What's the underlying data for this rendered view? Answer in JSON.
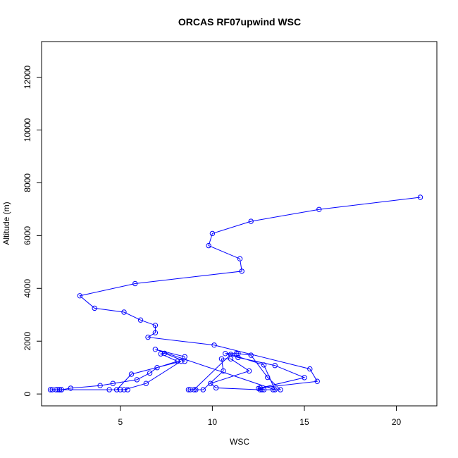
{
  "chart_data": {
    "type": "line",
    "title": "ORCAS RF07upwind WSC",
    "xlabel": "WSC",
    "ylabel": "Altitude (m)",
    "xlim": [
      0.72,
      22.2
    ],
    "ylim": [
      -450,
      13350
    ],
    "x_ticks": [
      5,
      10,
      15,
      20
    ],
    "y_ticks": [
      0,
      2000,
      4000,
      6000,
      8000,
      10000,
      12000
    ],
    "grid": false,
    "legend": "none",
    "marker": "open-circle",
    "series": [
      {
        "color": "#0000ff",
        "points": [
          [
            21.3,
            7450
          ],
          [
            15.8,
            6990
          ],
          [
            12.1,
            6540
          ],
          [
            10.0,
            6080
          ],
          [
            9.8,
            5620
          ],
          [
            11.5,
            5120
          ],
          [
            11.6,
            4650
          ],
          [
            5.8,
            4180
          ],
          [
            2.8,
            3720
          ],
          [
            3.6,
            3250
          ],
          [
            5.2,
            3100
          ],
          [
            6.1,
            2800
          ],
          [
            6.9,
            2600
          ],
          [
            6.9,
            2320
          ],
          [
            6.5,
            2150
          ],
          [
            10.1,
            1850
          ],
          [
            15.3,
            950
          ],
          [
            15.7,
            480
          ],
          [
            12.6,
            230
          ],
          [
            12.8,
            160
          ],
          [
            13.3,
            160
          ],
          [
            13.7,
            160
          ],
          [
            13.0,
            630
          ],
          [
            12.1,
            1470
          ],
          [
            11.4,
            1530
          ],
          [
            11.3,
            1530
          ],
          [
            10.7,
            1530
          ],
          [
            11.4,
            1380
          ],
          [
            13.4,
            1080
          ],
          [
            15.0,
            620
          ],
          [
            12.5,
            210
          ],
          [
            12.7,
            160
          ],
          [
            12.6,
            160
          ],
          [
            10.2,
            230
          ],
          [
            9.9,
            400
          ],
          [
            12.0,
            870
          ],
          [
            11.0,
            1330
          ],
          [
            10.5,
            1330
          ],
          [
            10.6,
            870
          ],
          [
            9.5,
            160
          ],
          [
            9.1,
            160
          ],
          [
            8.8,
            160
          ],
          [
            8.7,
            160
          ],
          [
            9.0,
            160
          ],
          [
            11.0,
            1500
          ],
          [
            12.8,
            1100
          ],
          [
            13.4,
            160
          ],
          [
            6.9,
            1690
          ],
          [
            8.5,
            1410
          ],
          [
            8.5,
            1240
          ],
          [
            7.4,
            1540
          ],
          [
            7.2,
            1520
          ],
          [
            8.1,
            1240
          ],
          [
            7.0,
            1000
          ],
          [
            6.6,
            790
          ],
          [
            5.9,
            540
          ],
          [
            4.6,
            400
          ],
          [
            3.9,
            320
          ],
          [
            2.3,
            220
          ],
          [
            1.8,
            160
          ],
          [
            1.6,
            160
          ],
          [
            1.7,
            160
          ],
          [
            1.3,
            160
          ],
          [
            1.5,
            160
          ],
          [
            1.2,
            160
          ],
          [
            1.7,
            160
          ],
          [
            1.8,
            160
          ],
          [
            4.4,
            160
          ],
          [
            5.4,
            160
          ],
          [
            5.0,
            160
          ],
          [
            5.2,
            160
          ],
          [
            6.4,
            400
          ],
          [
            8.3,
            1240
          ],
          [
            5.6,
            750
          ],
          [
            4.8,
            160
          ]
        ]
      }
    ]
  }
}
